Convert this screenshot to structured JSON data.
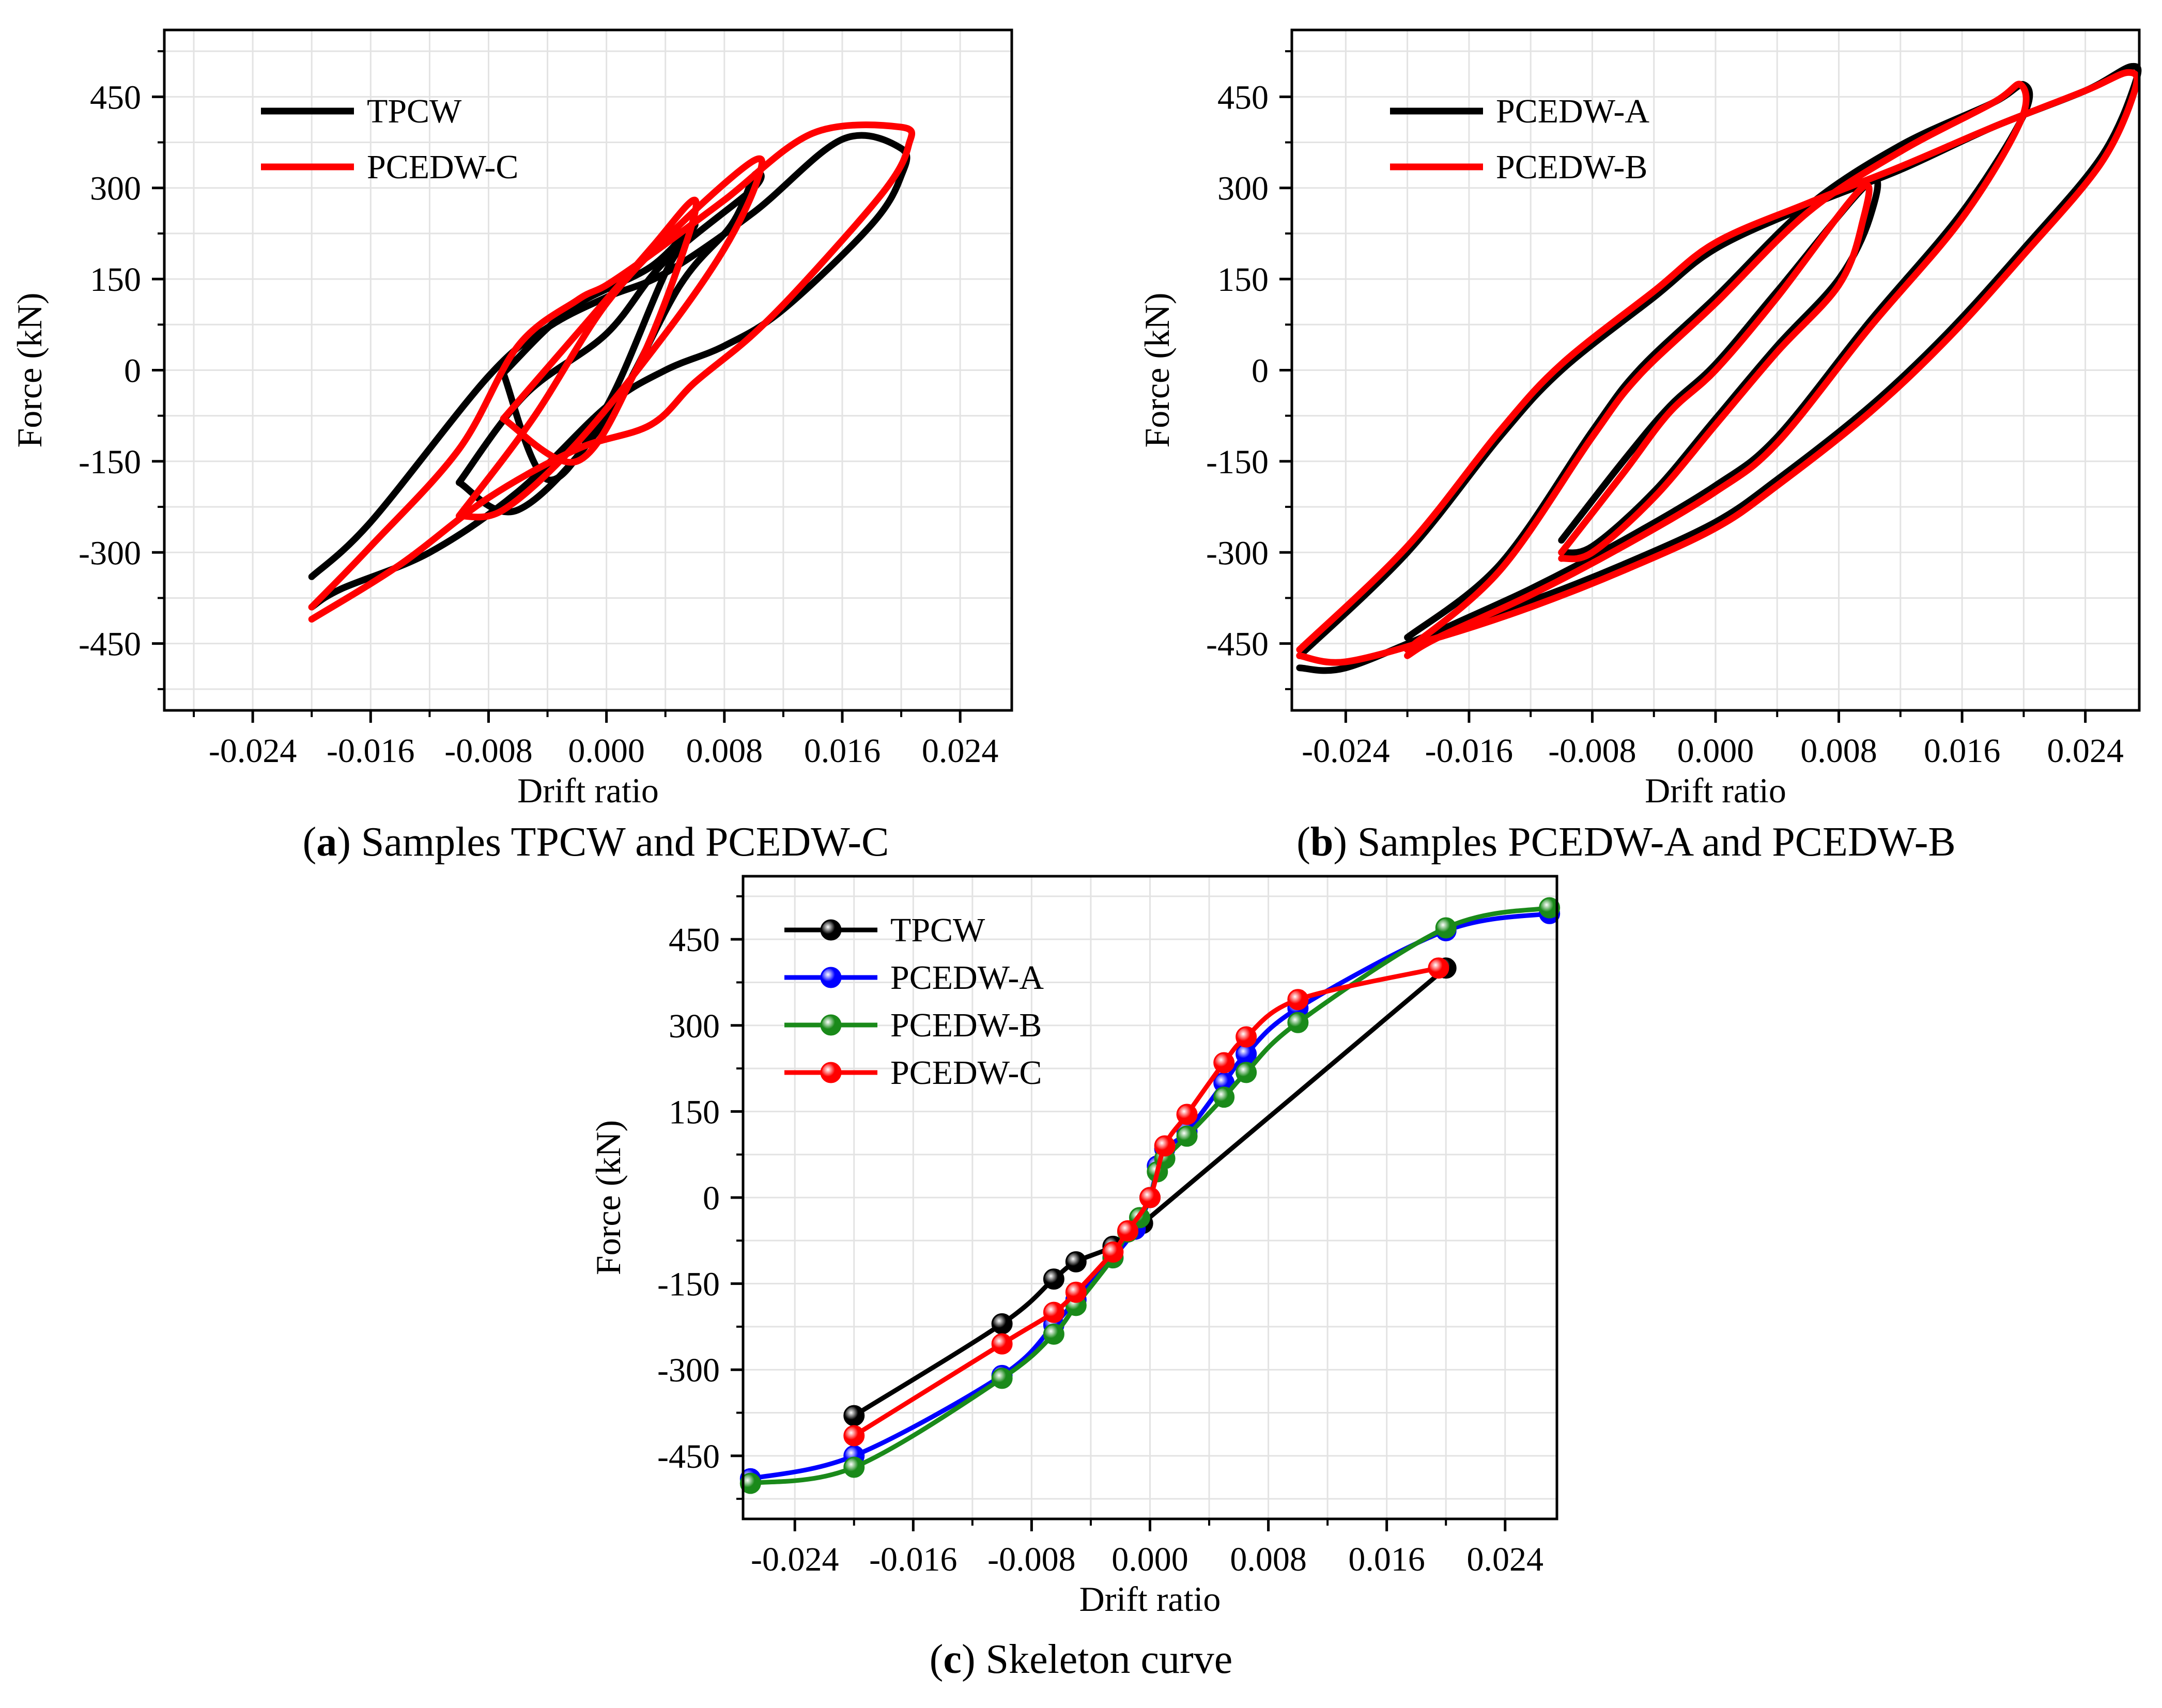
{
  "colors": {
    "TPCW": "#000000",
    "PCEDW-A": "#0000ff",
    "PCEDW-B": "#1a8a1a",
    "PCEDW-C": "#ff0000"
  },
  "chart_data": [
    {
      "type": "line",
      "id": "a",
      "caption": {
        "letter": "a",
        "text": "Samples TPCW and PCEDW-C"
      },
      "xlabel": "Drift ratio",
      "ylabel": "Force (kN)",
      "xlim": [
        -0.03,
        0.0275
      ],
      "ylim": [
        -560,
        560
      ],
      "xticks": [
        "-0.024",
        "-0.016",
        "-0.008",
        "0.000",
        "0.008",
        "0.016",
        "0.024"
      ],
      "yticks": [
        "450",
        "300",
        "150",
        "0",
        "-150",
        "-300",
        "-450"
      ],
      "grid": true,
      "legend": "top-left",
      "series": [
        {
          "name": "TPCW",
          "color": "#000000",
          "loops": [
            {
              "x": [
                -0.007,
                -0.0025,
                0.003,
                0.006,
                0.004,
                0.0,
                -0.004,
                -0.007
              ],
              "y": [
                -5,
                100,
                170,
                240,
                160,
                -60,
                -180,
                -5
              ]
            },
            {
              "x": [
                -0.01,
                -0.0055,
                0.0,
                0.004,
                0.01,
                0.01,
                0.0085,
                0.005,
                0.0,
                -0.006,
                -0.01
              ],
              "y": [
                -185,
                -40,
                60,
                180,
                300,
                320,
                240,
                140,
                -80,
                -230,
                -185
              ]
            },
            {
              "x": [
                -0.02,
                -0.016,
                -0.008,
                -0.004,
                0.0,
                0.004,
                0.01,
                0.016,
                0.02,
                0.02,
                0.018,
                0.012,
                0.008,
                0.004,
                0.0,
                -0.006,
                -0.012,
                -0.018,
                -0.02
              ],
              "y": [
                -340,
                -250,
                -10,
                70,
                120,
                160,
                260,
                380,
                365,
                320,
                240,
                100,
                40,
                0,
                -60,
                -200,
                -300,
                -360,
                -390
              ]
            }
          ]
        },
        {
          "name": "PCEDW-C",
          "color": "#ff0000",
          "loops": [
            {
              "x": [
                -0.007,
                -0.002,
                0.003,
                0.006,
                0.005,
                0.002,
                -0.002,
                -0.007
              ],
              "y": [
                -80,
                60,
                200,
                280,
                180,
                0,
                -150,
                -80
              ]
            },
            {
              "x": [
                -0.01,
                -0.005,
                0.0,
                0.005,
                0.01,
                0.0102,
                0.008,
                0.004,
                -0.002,
                -0.007,
                -0.01
              ],
              "y": [
                -240,
                -80,
                110,
                240,
                345,
                310,
                200,
                60,
                -120,
                -230,
                -240
              ]
            },
            {
              "x": [
                -0.02,
                -0.016,
                -0.01,
                -0.006,
                -0.002,
                0.0,
                0.003,
                0.008,
                0.014,
                0.02,
                0.0205,
                0.019,
                0.014,
                0.01,
                0.006,
                0.003,
                -0.002,
                -0.008,
                -0.014,
                -0.02
              ],
              "y": [
                -390,
                -290,
                -130,
                40,
                115,
                140,
                190,
                280,
                390,
                400,
                370,
                300,
                160,
                60,
                -20,
                -90,
                -130,
                -210,
                -320,
                -410
              ]
            }
          ]
        }
      ]
    },
    {
      "type": "line",
      "id": "b",
      "caption": {
        "letter": "b",
        "text": "Samples PCEDW-A and PCEDW-B"
      },
      "xlabel": "Drift ratio",
      "ylabel": "Force (kN)",
      "xlim": [
        -0.0275,
        0.0275
      ],
      "ylim": [
        -560,
        560
      ],
      "xticks": [
        "-0.024",
        "-0.016",
        "-0.008",
        "0.000",
        "0.008",
        "0.016",
        "0.024"
      ],
      "yticks": [
        "450",
        "300",
        "150",
        "0",
        "-150",
        "-300",
        "-450"
      ],
      "grid": true,
      "legend": "top-left",
      "series": [
        {
          "name": "PCEDW-A",
          "color": "#000000",
          "loops": [
            {
              "x": [
                -0.01,
                -0.006,
                -0.003,
                0.0,
                0.004,
                0.01,
                0.01,
                0.008,
                0.004,
                0.0,
                -0.004,
                -0.008,
                -0.01
              ],
              "y": [
                -280,
                -150,
                -60,
                10,
                130,
                310,
                250,
                150,
                40,
                -80,
                -200,
                -290,
                -300
              ]
            },
            {
              "x": [
                -0.02,
                -0.014,
                -0.008,
                -0.005,
                0.0,
                0.006,
                0.012,
                0.018,
                0.02,
                0.02,
                0.016,
                0.01,
                0.004,
                0.0,
                -0.006,
                -0.012,
                -0.018,
                -0.02
              ],
              "y": [
                -440,
                -320,
                -100,
                0,
                120,
                270,
                370,
                440,
                470,
                420,
                260,
                80,
                -110,
                -190,
                -280,
                -360,
                -430,
                -460
              ]
            },
            {
              "x": [
                -0.027,
                -0.02,
                -0.014,
                -0.01,
                -0.004,
                0.0,
                0.006,
                0.012,
                0.018,
                0.024,
                0.027,
                0.0272,
                0.025,
                0.02,
                0.015,
                0.01,
                0.004,
                0.0,
                -0.006,
                -0.012,
                -0.018,
                -0.024,
                -0.027
              ],
              "y": [
                -470,
                -300,
                -110,
                0,
                120,
                200,
                270,
                330,
                400,
                460,
                500,
                470,
                350,
                200,
                60,
                -60,
                -180,
                -250,
                -320,
                -380,
                -430,
                -490,
                -490
              ]
            }
          ]
        },
        {
          "name": "PCEDW-B",
          "color": "#ff0000",
          "loops": [
            {
              "x": [
                -0.01,
                -0.006,
                -0.003,
                0.0,
                0.004,
                0.0095,
                0.0095,
                0.008,
                0.004,
                0.0,
                -0.004,
                -0.008,
                -0.01
              ],
              "y": [
                -300,
                -170,
                -70,
                0,
                120,
                300,
                240,
                140,
                30,
                -90,
                -210,
                -300,
                -310
              ]
            },
            {
              "x": [
                -0.02,
                -0.014,
                -0.008,
                -0.005,
                0.0,
                0.006,
                0.012,
                0.018,
                0.0198,
                0.0198,
                0.016,
                0.01,
                0.004,
                0.0,
                -0.006,
                -0.012,
                -0.018,
                -0.02
              ],
              "y": [
                -460,
                -330,
                -110,
                -10,
                110,
                260,
                360,
                440,
                470,
                410,
                250,
                70,
                -120,
                -200,
                -290,
                -370,
                -440,
                -470
              ]
            },
            {
              "x": [
                -0.027,
                -0.02,
                -0.014,
                -0.01,
                -0.004,
                0.0,
                0.006,
                0.012,
                0.018,
                0.024,
                0.0268,
                0.0272,
                0.025,
                0.02,
                0.015,
                0.01,
                0.004,
                0.0,
                -0.006,
                -0.012,
                -0.018,
                -0.024,
                -0.027
              ],
              "y": [
                -460,
                -290,
                -100,
                10,
                130,
                210,
                275,
                335,
                400,
                460,
                490,
                460,
                340,
                190,
                50,
                -70,
                -190,
                -260,
                -330,
                -390,
                -440,
                -480,
                -470
              ]
            }
          ]
        }
      ]
    },
    {
      "type": "line",
      "id": "c",
      "caption": {
        "letter": "c",
        "text": "Skeleton curve"
      },
      "xlabel": "Drift ratio",
      "ylabel": "Force (kN)",
      "xlim": [
        -0.0275,
        0.0275
      ],
      "ylim": [
        -560,
        560
      ],
      "xticks": [
        "-0.024",
        "-0.016",
        "-0.008",
        "0.000",
        "0.008",
        "0.016",
        "0.024"
      ],
      "yticks": [
        "450",
        "300",
        "150",
        "0",
        "-150",
        "-300",
        "-450"
      ],
      "grid": true,
      "legend": "top-left",
      "series": [
        {
          "name": "TPCW",
          "color": "#000000",
          "x": [
            -0.02,
            -0.01,
            -0.0065,
            -0.005,
            -0.0025,
            -0.0005,
            0.02
          ],
          "y": [
            -380,
            -220,
            -142,
            -112,
            -85,
            -45,
            400
          ]
        },
        {
          "name": "PCEDW-A",
          "color": "#0000ff",
          "x": [
            -0.027,
            -0.02,
            -0.01,
            -0.0065,
            -0.005,
            -0.0025,
            -0.001,
            0.0,
            0.0005,
            0.001,
            0.0025,
            0.005,
            0.0065,
            0.01,
            0.02,
            0.027
          ],
          "y": [
            -490,
            -450,
            -310,
            -222,
            -178,
            -105,
            -55,
            0,
            55,
            85,
            115,
            200,
            250,
            330,
            465,
            495
          ]
        },
        {
          "name": "PCEDW-B",
          "color": "#1a8a1a",
          "x": [
            -0.027,
            -0.02,
            -0.01,
            -0.0065,
            -0.005,
            -0.0025,
            -0.0015,
            -0.0007,
            0.0,
            0.0005,
            0.001,
            0.0025,
            0.005,
            0.0065,
            0.01,
            0.02,
            0.027
          ],
          "y": [
            -498,
            -470,
            -315,
            -238,
            -188,
            -105,
            -60,
            -35,
            0,
            45,
            68,
            107,
            175,
            218,
            305,
            470,
            505
          ]
        },
        {
          "name": "PCEDW-C",
          "color": "#ff0000",
          "x": [
            -0.02,
            -0.01,
            -0.0065,
            -0.005,
            -0.0025,
            -0.0015,
            0.0,
            0.001,
            0.0025,
            0.005,
            0.0065,
            0.01,
            0.0195
          ],
          "y": [
            -415,
            -255,
            -200,
            -165,
            -95,
            -58,
            0,
            90,
            145,
            235,
            280,
            345,
            400
          ]
        }
      ]
    }
  ]
}
